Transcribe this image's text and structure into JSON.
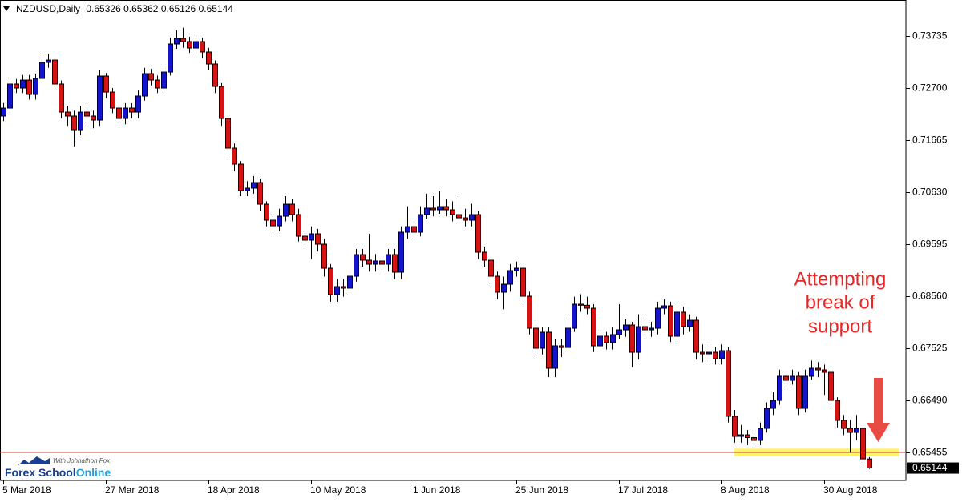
{
  "chart_data": {
    "type": "candlestick",
    "title": "NZDUSD,Daily",
    "categories": [
      "5 Mar 2018",
      null,
      null,
      null,
      null,
      null,
      null,
      null,
      null,
      null,
      null,
      null,
      null,
      null,
      null,
      null,
      "27 Mar 2018",
      null,
      null,
      null,
      null,
      null,
      null,
      null,
      null,
      null,
      null,
      null,
      null,
      null,
      null,
      null,
      "18 Apr 2018",
      null,
      null,
      null,
      null,
      null,
      null,
      null,
      null,
      null,
      null,
      null,
      null,
      null,
      null,
      null,
      "10 May 2018",
      null,
      null,
      null,
      null,
      null,
      null,
      null,
      null,
      null,
      null,
      null,
      null,
      null,
      null,
      null,
      "1 Jun 2018",
      null,
      null,
      null,
      null,
      null,
      null,
      null,
      null,
      null,
      null,
      null,
      null,
      null,
      null,
      null,
      "25 Jun 2018",
      null,
      null,
      null,
      null,
      null,
      null,
      null,
      null,
      null,
      null,
      null,
      null,
      null,
      null,
      null,
      "17 Jul 2018",
      null,
      null,
      null,
      null,
      null,
      null,
      null,
      null,
      null,
      null,
      null,
      null,
      null,
      null,
      null,
      "8 Aug 2018",
      null,
      null,
      null,
      null,
      null,
      null,
      null,
      null,
      null,
      null,
      null,
      null,
      null,
      null,
      null,
      "30 Aug 2018",
      null,
      null,
      null,
      null,
      null,
      null,
      null
    ],
    "open": [
      0.72143,
      0.72302,
      0.7278,
      0.727,
      0.72859,
      0.72573,
      0.72891,
      0.7321,
      0.73257,
      0.7278,
      0.72222,
      0.72143,
      0.71872,
      0.72222,
      0.72143,
      0.72063,
      0.72939,
      0.7262,
      0.72302,
      0.72095,
      0.72302,
      0.72222,
      0.72541,
      0.72987,
      0.72859,
      0.727,
      0.73018,
      0.73576,
      0.73687,
      0.73624,
      0.73496,
      0.73624,
      0.73417,
      0.73178,
      0.72732,
      0.72095,
      0.71506,
      0.71187,
      0.70662,
      0.7071,
      0.70821,
      0.70391,
      0.70073,
      0.69961,
      0.70152,
      0.70391,
      0.70184,
      0.69754,
      0.69675,
      0.69802,
      0.69595,
      0.69117,
      0.68592,
      0.68751,
      0.6872,
      0.68958,
      0.69388,
      0.69277,
      0.69197,
      0.69261,
      0.69197,
      0.69388,
      0.69038,
      0.69834,
      0.69945,
      0.69834,
      0.70184,
      0.70312,
      0.7028,
      0.70343,
      0.7028,
      0.70184,
      0.7012,
      0.70073,
      0.70184,
      0.69436,
      0.69277,
      0.68958,
      0.6864,
      0.68799,
      0.6907,
      0.69117,
      0.6856,
      0.67923,
      0.67525,
      0.67844,
      0.67127,
      0.67573,
      0.6754,
      0.67923,
      0.68401,
      0.6838,
      0.68321,
      0.67573,
      0.67764,
      0.67637,
      0.67796,
      0.67891,
      0.67987,
      0.67445,
      0.67955,
      0.67891,
      0.67923,
      0.68321,
      0.68369,
      0.67764,
      0.68242,
      0.67955,
      0.68082,
      0.67445,
      0.67414,
      0.67445,
      0.67318,
      0.67477,
      0.66172,
      0.65774,
      0.65805,
      0.6575,
      0.65694,
      0.65933,
      0.66331,
      0.6649,
      0.66968,
      0.66888,
      0.66968,
      0.66331,
      0.66968,
      0.67127,
      0.67095,
      0.67047,
      0.6649,
      0.66092,
      0.65933,
      0.65853,
      0.65933,
      0.65326
    ],
    "high": [
      0.72402,
      0.7289,
      0.7288,
      0.7296,
      0.7296,
      0.7299,
      0.734,
      0.7338,
      0.733,
      0.7285,
      0.7235,
      0.7225,
      0.7235,
      0.724,
      0.7225,
      0.7305,
      0.73,
      0.727,
      0.7242,
      0.724,
      0.724,
      0.7265,
      0.731,
      0.7308,
      0.7295,
      0.7315,
      0.737,
      0.7385,
      0.739,
      0.7372,
      0.7376,
      0.737,
      0.735,
      0.7325,
      0.728,
      0.7215,
      0.716,
      0.7125,
      0.7085,
      0.7095,
      0.709,
      0.7045,
      0.702,
      0.703,
      0.7055,
      0.705,
      0.703,
      0.6985,
      0.6995,
      0.699,
      0.697,
      0.692,
      0.689,
      0.689,
      0.691,
      0.695,
      0.695,
      0.698,
      0.694,
      0.6935,
      0.695,
      0.695,
      0.6995,
      0.7035,
      0.701,
      0.7035,
      0.706,
      0.7055,
      0.7065,
      0.705,
      0.7045,
      0.7055,
      0.703,
      0.704,
      0.7025,
      0.6955,
      0.6935,
      0.6905,
      0.6895,
      0.692,
      0.6925,
      0.692,
      0.6865,
      0.68,
      0.6795,
      0.6795,
      0.677,
      0.677,
      0.681,
      0.6855,
      0.686,
      0.6855,
      0.684,
      0.679,
      0.6785,
      0.6795,
      0.684,
      0.681,
      0.6805,
      0.682,
      0.681,
      0.6805,
      0.6845,
      0.685,
      0.6845,
      0.684,
      0.6835,
      0.682,
      0.6815,
      0.676,
      0.676,
      0.6755,
      0.676,
      0.6755,
      0.663,
      0.66,
      0.659,
      0.6585,
      0.6605,
      0.6645,
      0.6665,
      0.671,
      0.6705,
      0.671,
      0.6705,
      0.671,
      0.6728,
      0.6725,
      0.672,
      0.671,
      0.6655,
      0.662,
      0.661,
      0.662,
      0.66,
      0.65362
    ],
    "low": [
      0.72043,
      0.722,
      0.726,
      0.726,
      0.7247,
      0.7247,
      0.728,
      0.731,
      0.7268,
      0.721,
      0.7195,
      0.7154,
      0.7176,
      0.72,
      0.719,
      0.7195,
      0.725,
      0.722,
      0.7195,
      0.7198,
      0.721,
      0.721,
      0.7245,
      0.7275,
      0.726,
      0.726,
      0.7295,
      0.7348,
      0.735,
      0.734,
      0.7338,
      0.733,
      0.7305,
      0.726,
      0.7195,
      0.7135,
      0.7105,
      0.7055,
      0.7055,
      0.706,
      0.7025,
      0.6995,
      0.6985,
      0.6985,
      0.7005,
      0.7005,
      0.6965,
      0.695,
      0.693,
      0.6945,
      0.6895,
      0.6845,
      0.6845,
      0.6855,
      0.686,
      0.6885,
      0.6915,
      0.6905,
      0.6905,
      0.6908,
      0.6905,
      0.689,
      0.689,
      0.697,
      0.697,
      0.6975,
      0.701,
      0.7015,
      0.702,
      0.7015,
      0.7005,
      0.7,
      0.6995,
      0.6995,
      0.693,
      0.6915,
      0.688,
      0.685,
      0.683,
      0.6865,
      0.6895,
      0.684,
      0.678,
      0.6735,
      0.674,
      0.6695,
      0.6695,
      0.6735,
      0.6745,
      0.6785,
      0.6825,
      0.682,
      0.6745,
      0.6745,
      0.675,
      0.675,
      0.677,
      0.6775,
      0.6715,
      0.673,
      0.6775,
      0.6775,
      0.678,
      0.682,
      0.6765,
      0.6765,
      0.678,
      0.6785,
      0.673,
      0.6725,
      0.673,
      0.672,
      0.672,
      0.6605,
      0.6565,
      0.6565,
      0.656,
      0.6555,
      0.656,
      0.6585,
      0.662,
      0.664,
      0.6675,
      0.668,
      0.662,
      0.6625,
      0.669,
      0.6695,
      0.666,
      0.6635,
      0.6595,
      0.658,
      0.6545,
      0.657,
      0.6525,
      0.65126
    ],
    "close": [
      0.72302,
      0.7278,
      0.727,
      0.72859,
      0.72573,
      0.72891,
      0.7321,
      0.73257,
      0.7278,
      0.72222,
      0.72143,
      0.71872,
      0.72222,
      0.72143,
      0.72063,
      0.72939,
      0.7262,
      0.72302,
      0.72095,
      0.72302,
      0.72222,
      0.72541,
      0.72987,
      0.72859,
      0.727,
      0.73018,
      0.73576,
      0.73687,
      0.73624,
      0.73496,
      0.73624,
      0.73417,
      0.73178,
      0.72732,
      0.72095,
      0.71506,
      0.71187,
      0.70662,
      0.7071,
      0.70821,
      0.70391,
      0.70073,
      0.69961,
      0.70152,
      0.70391,
      0.70184,
      0.69754,
      0.69675,
      0.69802,
      0.69595,
      0.69117,
      0.68592,
      0.68751,
      0.6872,
      0.68958,
      0.69388,
      0.69277,
      0.69197,
      0.69261,
      0.69197,
      0.69388,
      0.69038,
      0.69834,
      0.69945,
      0.69834,
      0.70184,
      0.70312,
      0.7028,
      0.70343,
      0.7028,
      0.70184,
      0.7012,
      0.70073,
      0.70184,
      0.69436,
      0.69277,
      0.68958,
      0.6864,
      0.68799,
      0.6907,
      0.69117,
      0.6856,
      0.67923,
      0.67525,
      0.67844,
      0.67127,
      0.67573,
      0.6754,
      0.67923,
      0.68401,
      0.6838,
      0.68321,
      0.67573,
      0.67764,
      0.67637,
      0.67796,
      0.67891,
      0.67987,
      0.67445,
      0.67955,
      0.67891,
      0.67923,
      0.68321,
      0.68369,
      0.67764,
      0.68242,
      0.67955,
      0.68082,
      0.67445,
      0.67414,
      0.67445,
      0.67318,
      0.67477,
      0.66172,
      0.65774,
      0.65805,
      0.6575,
      0.65694,
      0.65933,
      0.66331,
      0.6649,
      0.66968,
      0.66888,
      0.66968,
      0.66331,
      0.66968,
      0.67127,
      0.67095,
      0.67047,
      0.6649,
      0.66092,
      0.65933,
      0.65853,
      0.65933,
      0.65326,
      0.65144
    ],
    "up_color": "#1414c8",
    "down_color": "#d21414",
    "ylim": [
      0.64898,
      0.74452
    ],
    "yticks": [
      0.73735,
      {
        "value": 0.727,
        "label": "0.72700"
      },
      0.71665,
      {
        "value": 0.7063,
        "label": "0.70630"
      },
      0.69595,
      {
        "value": 0.6856,
        "label": "0.68560"
      },
      0.67525,
      {
        "value": 0.6649,
        "label": "0.66490"
      },
      0.65455
    ],
    "support_line": 0.65455,
    "support_zone": [
      0.6538,
      0.6553
    ],
    "annotation": [
      "Attempting",
      "break of",
      "support"
    ],
    "watermark": {
      "tagline": "With Johnathon Fox",
      "brand": "Forex School",
      "brand_suffix": "Online"
    }
  }
}
